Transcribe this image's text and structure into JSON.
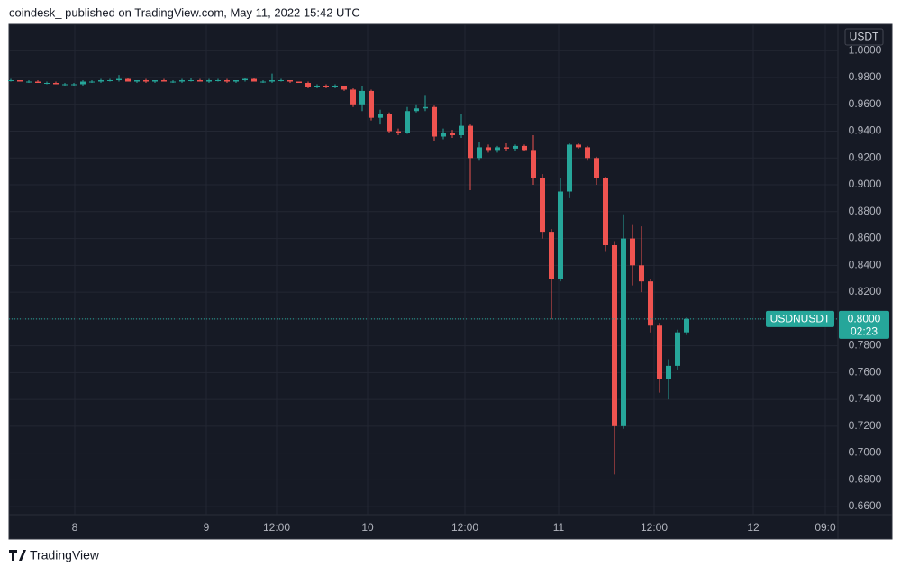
{
  "chart_data": {
    "type": "candlestick",
    "title": "coindesk_ published on TradingView.com, May 11, 2022 15:42 UTC",
    "footer": "TradingView",
    "currency": "USDT",
    "symbol": "USDNUSDT",
    "countdown": "02:23",
    "last_price": {
      "value": 0.8,
      "label": "0.8000"
    },
    "up_color": "#26a69a",
    "down_color": "#ef5350",
    "grid": true,
    "x": [
      0,
      1,
      2,
      3,
      4,
      5,
      6,
      7,
      8,
      9,
      10,
      11,
      12,
      13,
      14,
      15,
      16,
      17,
      18,
      19,
      20,
      21,
      22,
      23,
      24,
      25,
      26,
      27,
      28,
      29,
      30,
      31,
      32,
      33,
      34,
      35,
      36,
      37,
      38,
      39,
      40,
      41,
      42,
      43,
      44,
      45,
      46,
      47,
      48,
      49,
      50,
      51,
      52,
      53,
      54,
      55,
      56,
      57,
      58,
      59,
      60,
      61,
      62,
      63,
      64,
      65,
      66,
      67,
      68,
      69,
      70,
      71,
      72,
      73,
      74,
      75
    ],
    "open": [
      0.978,
      0.978,
      0.977,
      0.977,
      0.976,
      0.976,
      0.975,
      0.975,
      0.975,
      0.977,
      0.977,
      0.978,
      0.978,
      0.979,
      0.977,
      0.978,
      0.977,
      0.978,
      0.977,
      0.977,
      0.978,
      0.978,
      0.977,
      0.978,
      0.978,
      0.977,
      0.978,
      0.979,
      0.977,
      0.977,
      0.978,
      0.978,
      0.977,
      0.976,
      0.973,
      0.974,
      0.973,
      0.974,
      0.971,
      0.96,
      0.97,
      0.95,
      0.953,
      0.94,
      0.939,
      0.955,
      0.957,
      0.958,
      0.936,
      0.939,
      0.937,
      0.944,
      0.92,
      0.928,
      0.926,
      0.928,
      0.927,
      0.929,
      0.926,
      0.905,
      0.865,
      0.83,
      0.895,
      0.93,
      0.928,
      0.92,
      0.905,
      0.855,
      0.72,
      0.86,
      0.84,
      0.828,
      0.795,
      0.755,
      0.765,
      0.79
    ],
    "high": [
      0.979,
      0.978,
      0.978,
      0.978,
      0.977,
      0.977,
      0.976,
      0.976,
      0.978,
      0.978,
      0.979,
      0.979,
      0.982,
      0.98,
      0.978,
      0.979,
      0.978,
      0.979,
      0.978,
      0.979,
      0.98,
      0.979,
      0.979,
      0.979,
      0.979,
      0.978,
      0.98,
      0.98,
      0.978,
      0.983,
      0.979,
      0.978,
      0.977,
      0.977,
      0.975,
      0.975,
      0.975,
      0.974,
      0.972,
      0.974,
      0.971,
      0.956,
      0.954,
      0.942,
      0.958,
      0.96,
      0.967,
      0.959,
      0.942,
      0.941,
      0.953,
      0.945,
      0.932,
      0.93,
      0.929,
      0.931,
      0.93,
      0.93,
      0.937,
      0.908,
      0.867,
      0.905,
      0.931,
      0.931,
      0.929,
      0.921,
      0.906,
      0.858,
      0.878,
      0.87,
      0.869,
      0.83,
      0.797,
      0.77,
      0.792,
      0.801
    ],
    "low": [
      0.977,
      0.977,
      0.976,
      0.976,
      0.975,
      0.975,
      0.974,
      0.974,
      0.974,
      0.976,
      0.976,
      0.977,
      0.977,
      0.977,
      0.976,
      0.976,
      0.976,
      0.977,
      0.976,
      0.976,
      0.977,
      0.977,
      0.976,
      0.977,
      0.976,
      0.976,
      0.977,
      0.977,
      0.976,
      0.976,
      0.977,
      0.976,
      0.976,
      0.972,
      0.972,
      0.972,
      0.972,
      0.97,
      0.958,
      0.955,
      0.948,
      0.945,
      0.939,
      0.937,
      0.938,
      0.954,
      0.955,
      0.933,
      0.934,
      0.935,
      0.935,
      0.896,
      0.918,
      0.924,
      0.924,
      0.925,
      0.925,
      0.925,
      0.9,
      0.86,
      0.8,
      0.828,
      0.89,
      0.927,
      0.918,
      0.9,
      0.85,
      0.684,
      0.718,
      0.825,
      0.82,
      0.79,
      0.745,
      0.74,
      0.762,
      0.788
    ],
    "close": [
      0.978,
      0.977,
      0.977,
      0.976,
      0.976,
      0.975,
      0.975,
      0.975,
      0.977,
      0.977,
      0.978,
      0.978,
      0.979,
      0.977,
      0.978,
      0.977,
      0.978,
      0.977,
      0.977,
      0.978,
      0.978,
      0.977,
      0.978,
      0.978,
      0.977,
      0.978,
      0.979,
      0.977,
      0.977,
      0.978,
      0.978,
      0.977,
      0.976,
      0.973,
      0.974,
      0.973,
      0.974,
      0.971,
      0.96,
      0.97,
      0.95,
      0.953,
      0.94,
      0.939,
      0.955,
      0.957,
      0.958,
      0.936,
      0.939,
      0.937,
      0.944,
      0.92,
      0.928,
      0.926,
      0.928,
      0.927,
      0.929,
      0.926,
      0.905,
      0.865,
      0.83,
      0.895,
      0.93,
      0.928,
      0.92,
      0.905,
      0.855,
      0.72,
      0.86,
      0.84,
      0.828,
      0.795,
      0.755,
      0.765,
      0.79,
      0.8
    ],
    "xlim": [
      -0.2,
      91.8
    ],
    "xticks": [
      {
        "value": 7.1,
        "label": "8"
      },
      {
        "value": 21.7,
        "label": "9"
      },
      {
        "value": 29.5,
        "label": "12:00"
      },
      {
        "value": 39.6,
        "label": "10"
      },
      {
        "value": 50.4,
        "label": "12:00"
      },
      {
        "value": 60.8,
        "label": "11"
      },
      {
        "value": 71.4,
        "label": "12:00"
      },
      {
        "value": 82.4,
        "label": "12"
      },
      {
        "value": 90.4,
        "label": "09:0"
      }
    ],
    "ylim": [
      0.654,
      1.0197
    ],
    "yticks": [
      {
        "value": 0.66,
        "label": "0.6600"
      },
      {
        "value": 0.68,
        "label": "0.6800"
      },
      {
        "value": 0.7,
        "label": "0.7000"
      },
      {
        "value": 0.72,
        "label": "0.7200"
      },
      {
        "value": 0.74,
        "label": "0.7400"
      },
      {
        "value": 0.76,
        "label": "0.7600"
      },
      {
        "value": 0.78,
        "label": "0.7800"
      },
      {
        "value": 0.8,
        "label": "0.8000"
      },
      {
        "value": 0.82,
        "label": "0.8200"
      },
      {
        "value": 0.84,
        "label": "0.8400"
      },
      {
        "value": 0.86,
        "label": "0.8600"
      },
      {
        "value": 0.88,
        "label": "0.8800"
      },
      {
        "value": 0.9,
        "label": "0.9000"
      },
      {
        "value": 0.92,
        "label": "0.9200"
      },
      {
        "value": 0.94,
        "label": "0.9400"
      },
      {
        "value": 0.96,
        "label": "0.9600"
      },
      {
        "value": 0.98,
        "label": "0.9800"
      },
      {
        "value": 1.0,
        "label": "1.0000"
      }
    ]
  }
}
